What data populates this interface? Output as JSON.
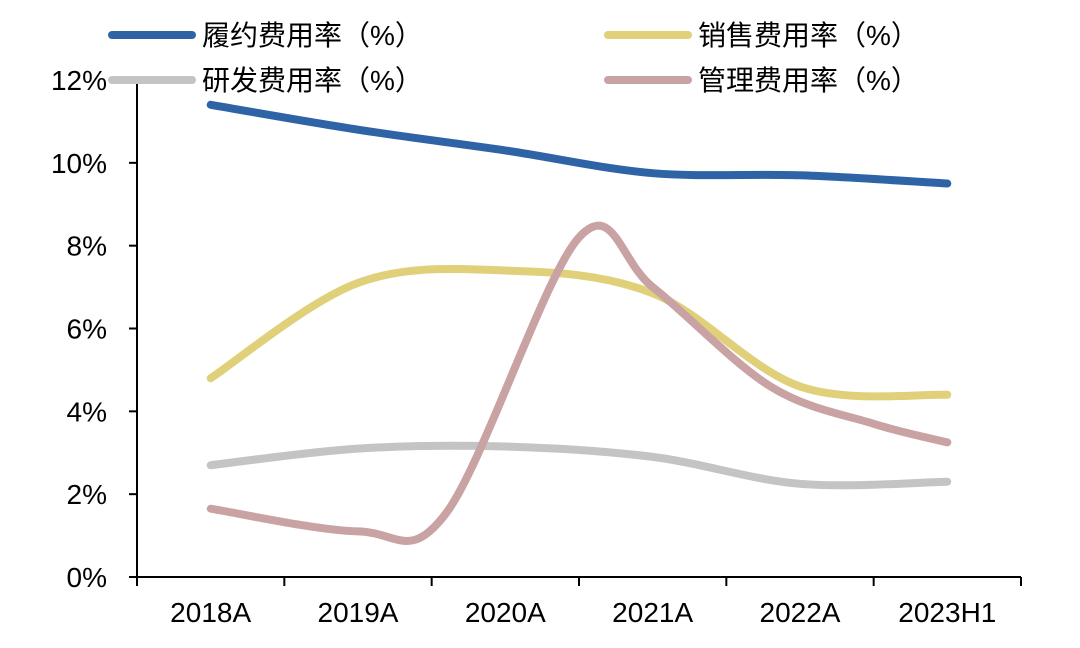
{
  "chart_data": {
    "type": "line",
    "title": "",
    "xlabel": "",
    "ylabel": "",
    "categories": [
      "2018A",
      "2019A",
      "2020A",
      "2021A",
      "2022A",
      "2023H1"
    ],
    "ylim": [
      0,
      12
    ],
    "yticks": [
      "0%",
      "2%",
      "4%",
      "6%",
      "8%",
      "10%",
      "12%"
    ],
    "grid": false,
    "legend_position": "top",
    "series": [
      {
        "name": "履约费用率（%）",
        "color": "#2e64a5",
        "x": [
          0,
          1,
          2,
          3,
          4,
          5
        ],
        "values": [
          11.4,
          10.8,
          10.3,
          9.75,
          9.7,
          9.5
        ]
      },
      {
        "name": "销售费用率（%）",
        "color": "#e0d07a",
        "x": [
          0,
          1,
          2,
          3,
          4,
          5
        ],
        "values": [
          4.8,
          7.1,
          7.4,
          6.85,
          4.6,
          4.4
        ]
      },
      {
        "name": "研发费用率（%）",
        "color": "#c4c4c4",
        "x": [
          0,
          1,
          2,
          3,
          4,
          5
        ],
        "values": [
          2.7,
          3.1,
          3.15,
          2.9,
          2.25,
          2.3
        ]
      },
      {
        "name": "管理费用率（%）",
        "color": "#c9a3a4",
        "x": [
          0,
          1,
          1.6,
          2.5,
          3,
          3.8,
          4.5,
          5
        ],
        "values": [
          1.65,
          1.1,
          1.55,
          8.2,
          7.0,
          4.6,
          3.7,
          3.25
        ]
      }
    ]
  }
}
